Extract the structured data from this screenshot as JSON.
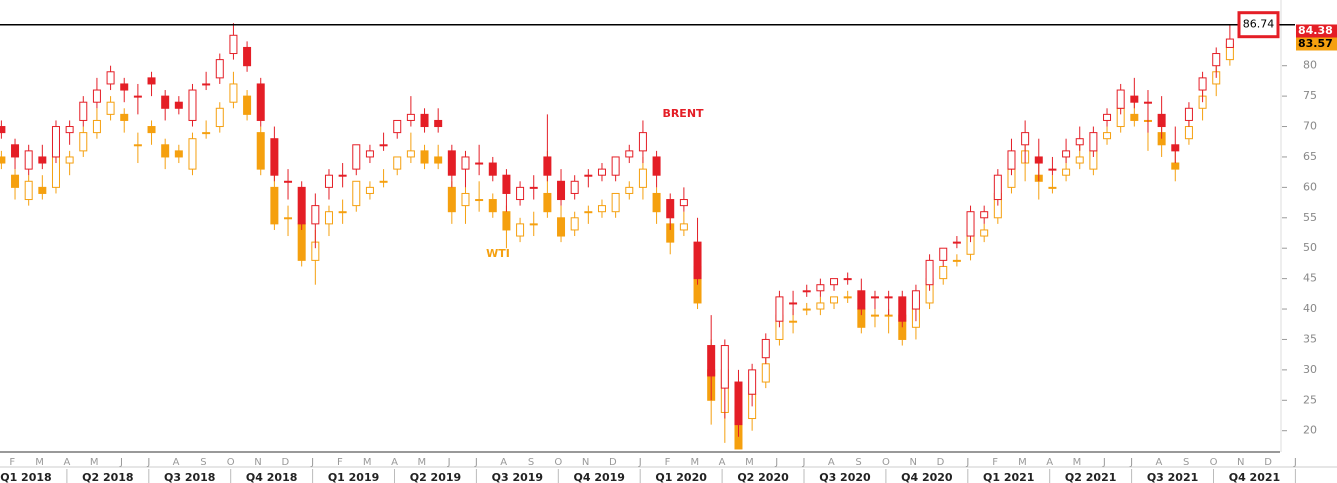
{
  "chart_data": {
    "type": "candlestick",
    "ylim": [
      16.5,
      90.8
    ],
    "yticks": [
      20,
      25,
      30,
      35,
      40,
      45,
      50,
      55,
      60,
      65,
      70,
      75,
      80
    ],
    "month_labels": [
      "F",
      "M",
      "A",
      "M",
      "J",
      "J",
      "A",
      "S",
      "O",
      "N",
      "D",
      "J",
      "F",
      "M",
      "A",
      "M",
      "J",
      "J",
      "A",
      "S",
      "O",
      "N",
      "D",
      "J",
      "F",
      "M",
      "A",
      "M",
      "J",
      "J",
      "A",
      "S",
      "O",
      "N",
      "D",
      "J",
      "F",
      "M",
      "A",
      "M",
      "J",
      "J",
      "A",
      "S",
      "O",
      "N",
      "D",
      "J"
    ],
    "quarter_labels": [
      "Q1 2018",
      "Q2 2018",
      "Q3 2018",
      "Q4 2018",
      "Q1 2019",
      "Q2 2019",
      "Q3 2019",
      "Q4 2019",
      "Q1 2020",
      "Q2 2020",
      "Q3 2020",
      "Q4 2020",
      "Q1 2021",
      "Q2 2021",
      "Q3 2021",
      "Q4 2021"
    ],
    "series": [
      {
        "name": "BRENT",
        "color": "#e41e26",
        "open": [
          70,
          67,
          63,
          65,
          65,
          69,
          71,
          74,
          77,
          77,
          75,
          78,
          75,
          74,
          71,
          77,
          78,
          82,
          83,
          77,
          68,
          61,
          60,
          54,
          60,
          62,
          63,
          65,
          67,
          69,
          71,
          72,
          71,
          66,
          63,
          64,
          64,
          62,
          58,
          60,
          65,
          61,
          59,
          62,
          62,
          62,
          65,
          66,
          65,
          58,
          57,
          51,
          34,
          27,
          28,
          26,
          32,
          38,
          41,
          43,
          43,
          44,
          45,
          43,
          42,
          42,
          42,
          40,
          44,
          48,
          51,
          52,
          55,
          58,
          63,
          67,
          65,
          63,
          65,
          67,
          66,
          71,
          73,
          75,
          74,
          72,
          67,
          71,
          76,
          80,
          83
        ],
        "high": [
          71,
          68,
          67,
          67,
          71,
          71,
          75,
          78,
          80,
          78,
          77,
          79,
          76,
          75,
          77,
          79,
          82,
          87,
          84,
          78,
          70,
          63,
          61,
          59,
          63,
          64,
          67,
          67,
          69,
          71,
          75,
          73,
          73,
          67,
          66,
          67,
          65,
          63,
          61,
          62,
          72,
          63,
          62,
          63,
          64,
          65,
          67,
          71,
          66,
          59,
          60,
          55,
          39,
          35,
          30,
          31,
          36,
          43,
          43,
          44,
          45,
          45,
          46,
          45,
          43,
          43,
          43,
          44,
          49,
          50,
          52,
          57,
          57,
          63,
          68,
          71,
          68,
          65,
          68,
          70,
          70,
          73,
          77,
          78,
          76,
          75,
          70,
          74,
          79,
          83,
          86.74
        ],
        "low": [
          68,
          63,
          62,
          63,
          64,
          67,
          70,
          73,
          76,
          74,
          72,
          75,
          71,
          72,
          70,
          76,
          77,
          81,
          79,
          70,
          61,
          58,
          53,
          50,
          58,
          60,
          62,
          64,
          66,
          68,
          70,
          69,
          69,
          60,
          60,
          62,
          61,
          56,
          57,
          58,
          61,
          57,
          58,
          60,
          61,
          61,
          64,
          64,
          60,
          53,
          56,
          44,
          25,
          22,
          19,
          24,
          31,
          37,
          39,
          42,
          42,
          43,
          44,
          39,
          40,
          39,
          37,
          38,
          43,
          47,
          50,
          51,
          54,
          57,
          62,
          64,
          61,
          62,
          64,
          66,
          65,
          70,
          72,
          73,
          69,
          68,
          64,
          70,
          74,
          78,
          83
        ],
        "close": [
          69,
          65,
          66,
          64,
          70,
          70,
          74,
          76,
          79,
          76,
          75,
          77,
          73,
          73,
          76,
          77,
          81,
          85,
          80,
          71,
          62,
          61,
          54,
          57,
          62,
          62,
          67,
          66,
          67,
          71,
          72,
          70,
          70,
          62,
          65,
          64,
          62,
          59,
          60,
          60,
          62,
          58,
          61,
          62,
          63,
          65,
          66,
          69,
          62,
          55,
          58,
          45,
          29,
          34,
          21,
          30,
          35,
          42,
          41,
          43,
          44,
          45,
          45,
          40,
          42,
          42,
          38,
          43,
          48,
          50,
          51,
          56,
          56,
          62,
          66,
          69,
          64,
          63,
          66,
          68,
          69,
          72,
          76,
          74,
          74,
          70,
          66,
          73,
          78,
          82,
          84.38
        ]
      },
      {
        "name": "WTI",
        "color": "#f5a00f",
        "open": [
          65,
          62,
          58,
          60,
          60,
          64,
          66,
          69,
          72,
          72,
          67,
          70,
          67,
          66,
          63,
          69,
          70,
          74,
          75,
          69,
          60,
          55,
          54,
          48,
          54,
          56,
          57,
          59,
          61,
          63,
          65,
          66,
          65,
          60,
          57,
          58,
          58,
          56,
          52,
          54,
          59,
          55,
          53,
          56,
          56,
          56,
          59,
          60,
          59,
          54,
          53,
          47,
          30,
          23,
          24,
          22,
          28,
          35,
          38,
          40,
          40,
          41,
          42,
          40,
          39,
          39,
          39,
          37,
          41,
          45,
          48,
          49,
          52,
          55,
          60,
          64,
          62,
          60,
          62,
          64,
          63,
          68,
          70,
          72,
          71,
          69,
          64,
          68,
          73,
          77,
          81
        ],
        "high": [
          66,
          63,
          62,
          62,
          66,
          66,
          70,
          73,
          75,
          73,
          69,
          71,
          68,
          67,
          69,
          71,
          74,
          79,
          76,
          70,
          62,
          57,
          55,
          53,
          57,
          58,
          61,
          61,
          63,
          65,
          69,
          67,
          67,
          61,
          60,
          61,
          59,
          57,
          55,
          56,
          66,
          57,
          56,
          57,
          58,
          59,
          61,
          65,
          60,
          55,
          56,
          51,
          35,
          31,
          26,
          27,
          32,
          40,
          40,
          41,
          42,
          42,
          43,
          42,
          40,
          40,
          40,
          41,
          46,
          47,
          49,
          54,
          54,
          60,
          65,
          68,
          65,
          62,
          65,
          67,
          67,
          70,
          74,
          75,
          73,
          72,
          67,
          71,
          76,
          80,
          84
        ],
        "low": [
          63,
          58,
          57,
          58,
          59,
          62,
          65,
          68,
          71,
          69,
          64,
          67,
          63,
          64,
          62,
          68,
          69,
          73,
          71,
          62,
          53,
          52,
          47,
          44,
          52,
          54,
          56,
          58,
          60,
          62,
          64,
          63,
          63,
          54,
          54,
          56,
          55,
          50,
          51,
          52,
          55,
          51,
          52,
          54,
          55,
          55,
          58,
          58,
          54,
          49,
          52,
          40,
          21,
          18,
          17,
          20,
          27,
          34,
          36,
          39,
          39,
          40,
          41,
          36,
          37,
          36,
          34,
          35,
          40,
          44,
          47,
          48,
          51,
          54,
          59,
          61,
          58,
          59,
          61,
          63,
          62,
          67,
          69,
          70,
          66,
          65,
          61,
          67,
          71,
          75,
          80
        ],
        "close": [
          64,
          60,
          61,
          59,
          65,
          65,
          69,
          71,
          74,
          71,
          67,
          69,
          65,
          65,
          68,
          69,
          73,
          77,
          72,
          63,
          54,
          55,
          48,
          51,
          56,
          56,
          61,
          60,
          61,
          65,
          66,
          64,
          64,
          56,
          59,
          58,
          56,
          53,
          54,
          54,
          56,
          52,
          55,
          56,
          57,
          59,
          60,
          63,
          56,
          51,
          54,
          41,
          25,
          30,
          17,
          26,
          31,
          39,
          38,
          40,
          41,
          42,
          42,
          37,
          39,
          39,
          35,
          40,
          45,
          47,
          48,
          53,
          53,
          59,
          63,
          66,
          61,
          60,
          63,
          65,
          66,
          69,
          73,
          71,
          71,
          67,
          63,
          70,
          75,
          79,
          83.57
        ]
      }
    ]
  }
}
